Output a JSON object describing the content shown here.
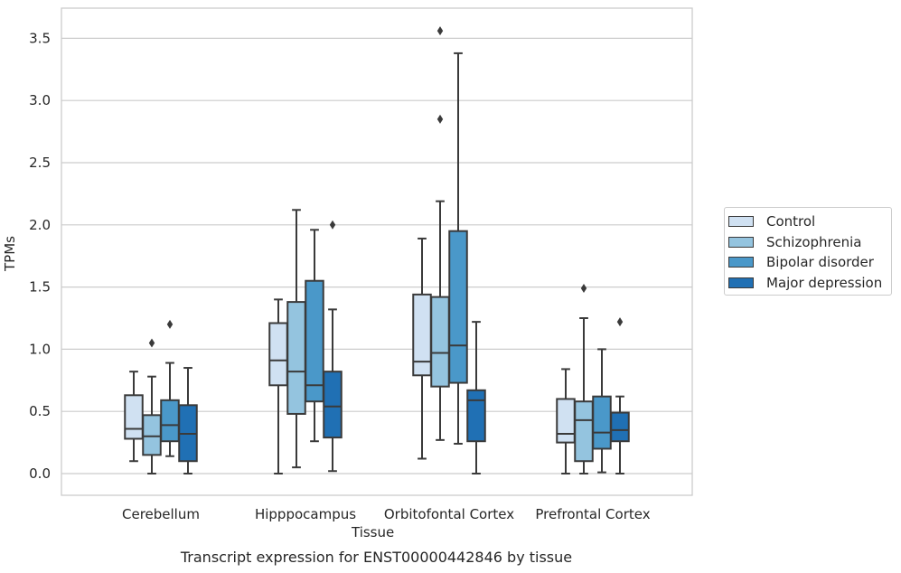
{
  "chart_data": {
    "type": "box",
    "title": "",
    "caption": "Transcript expression for ENST00000442846 by tissue",
    "xlabel": "Tissue",
    "ylabel": "TPMs",
    "ylim": [
      -0.17,
      3.75
    ],
    "yticks": [
      "0.0",
      "0.5",
      "1.0",
      "1.5",
      "2.0",
      "2.5",
      "3.0",
      "3.5"
    ],
    "grid": true,
    "legend_position": "right",
    "categories": [
      "Cerebellum",
      "Hipppocampus",
      "Orbitofontal Cortex",
      "Prefrontal Cortex"
    ],
    "series": [
      {
        "name": "Control",
        "color": "#d0e1f2",
        "boxes": [
          {
            "whislo": 0.1,
            "q1": 0.28,
            "med": 0.36,
            "q3": 0.63,
            "whishi": 0.82,
            "fliers": []
          },
          {
            "whislo": 0.0,
            "q1": 0.71,
            "med": 0.91,
            "q3": 1.21,
            "whishi": 1.4,
            "fliers": []
          },
          {
            "whislo": 0.12,
            "q1": 0.79,
            "med": 0.9,
            "q3": 1.44,
            "whishi": 1.89,
            "fliers": []
          },
          {
            "whislo": 0.0,
            "q1": 0.25,
            "med": 0.32,
            "q3": 0.6,
            "whishi": 0.84,
            "fliers": []
          }
        ]
      },
      {
        "name": "Schizophrenia",
        "color": "#94c4df",
        "boxes": [
          {
            "whislo": 0.0,
            "q1": 0.15,
            "med": 0.3,
            "q3": 0.47,
            "whishi": 0.78,
            "fliers": [
              1.05
            ]
          },
          {
            "whislo": 0.05,
            "q1": 0.48,
            "med": 0.82,
            "q3": 1.38,
            "whishi": 2.12,
            "fliers": []
          },
          {
            "whislo": 0.27,
            "q1": 0.7,
            "med": 0.97,
            "q3": 1.42,
            "whishi": 2.19,
            "fliers": [
              2.85,
              3.56
            ]
          },
          {
            "whislo": 0.0,
            "q1": 0.1,
            "med": 0.43,
            "q3": 0.58,
            "whishi": 1.25,
            "fliers": [
              1.49
            ]
          }
        ]
      },
      {
        "name": "Bipolar disorder",
        "color": "#4a98c9",
        "boxes": [
          {
            "whislo": 0.14,
            "q1": 0.26,
            "med": 0.39,
            "q3": 0.59,
            "whishi": 0.89,
            "fliers": [
              1.2
            ]
          },
          {
            "whislo": 0.26,
            "q1": 0.58,
            "med": 0.71,
            "q3": 1.55,
            "whishi": 1.96,
            "fliers": []
          },
          {
            "whislo": 0.24,
            "q1": 0.73,
            "med": 1.03,
            "q3": 1.95,
            "whishi": 3.38,
            "fliers": []
          },
          {
            "whislo": 0.01,
            "q1": 0.2,
            "med": 0.33,
            "q3": 0.62,
            "whishi": 1.0,
            "fliers": []
          }
        ]
      },
      {
        "name": "Major depression",
        "color": "#2070b4",
        "boxes": [
          {
            "whislo": 0.0,
            "q1": 0.1,
            "med": 0.32,
            "q3": 0.55,
            "whishi": 0.85,
            "fliers": []
          },
          {
            "whislo": 0.02,
            "q1": 0.29,
            "med": 0.54,
            "q3": 0.82,
            "whishi": 1.32,
            "fliers": [
              2.0
            ]
          },
          {
            "whislo": 0.0,
            "q1": 0.26,
            "med": 0.59,
            "q3": 0.67,
            "whishi": 1.22,
            "fliers": []
          },
          {
            "whislo": 0.0,
            "q1": 0.26,
            "med": 0.35,
            "q3": 0.49,
            "whishi": 0.62,
            "fliers": [
              1.22
            ]
          }
        ]
      }
    ]
  }
}
